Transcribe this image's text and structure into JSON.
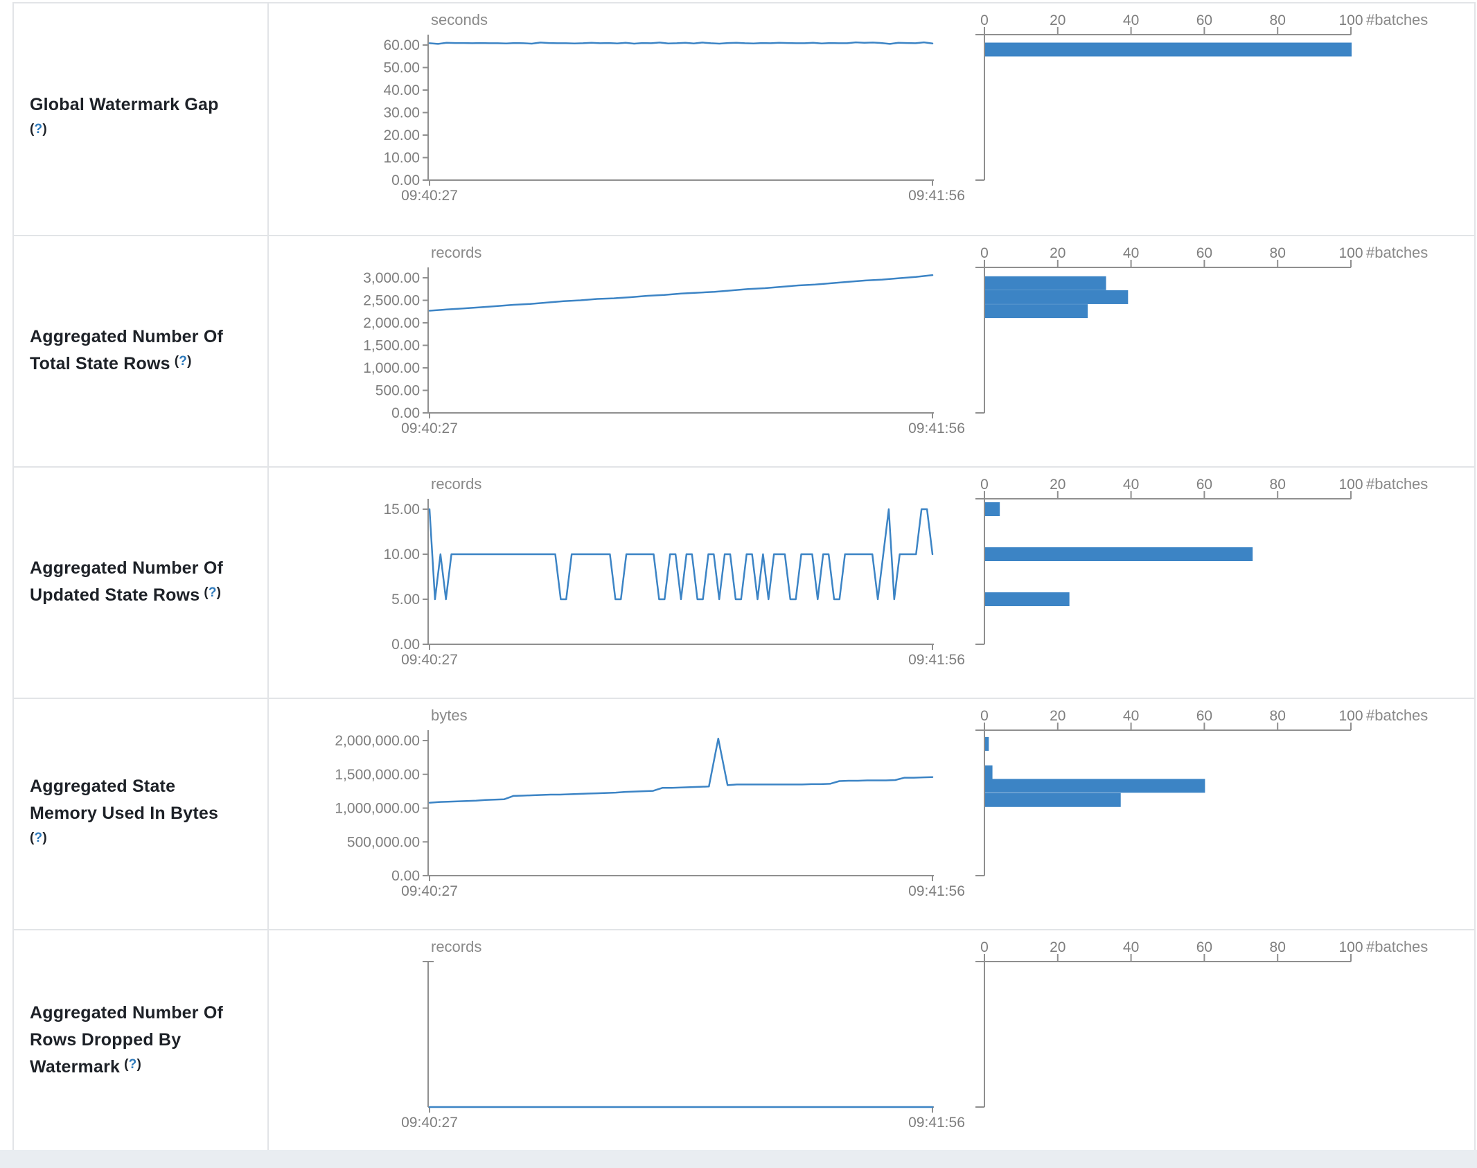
{
  "colors": {
    "accent": "#3c84c5",
    "axis_line": "#8f8f8f",
    "axis_text": "#7e7e7e",
    "help_blue": "#2d79bb",
    "label_text": "#1d2127",
    "border": "#e2e4e7",
    "footer_bg": "#e9edf1"
  },
  "time_axis": {
    "start": "09:40:27",
    "end": "09:41:56"
  },
  "histogram_header": {
    "ticks": [
      "0",
      "20",
      "40",
      "60",
      "80",
      "100"
    ],
    "unit_label": "#batches",
    "max": 100
  },
  "chart_data": {
    "note": "see rows[] - each row holds one timeline line chart and one horizontal histogram of #batches"
  },
  "rows": [
    {
      "id": "global-watermark-gap",
      "label_lines": [
        "Global Watermark Gap",
        "(?)"
      ],
      "help_label": "(?)",
      "timeline": {
        "type": "line",
        "unit": "seconds",
        "ymax": 60,
        "yticks": [
          "60.00",
          "50.00",
          "40.00",
          "30.00",
          "20.00",
          "10.00",
          "0.00"
        ],
        "values": [
          60.8,
          60.5,
          61.0,
          60.9,
          60.9,
          60.8,
          60.9,
          60.8,
          60.8,
          60.7,
          60.9,
          60.8,
          60.6,
          61.1,
          60.9,
          60.8,
          60.8,
          60.7,
          60.8,
          61.0,
          60.8,
          60.9,
          60.7,
          61.0,
          60.6,
          60.9,
          60.8,
          61.1,
          60.7,
          60.8,
          61.0,
          60.7,
          61.1,
          60.8,
          60.6,
          60.9,
          61.0,
          60.8,
          60.7,
          60.9,
          60.8,
          61.0,
          60.9,
          60.8,
          60.8,
          61.0,
          60.7,
          60.9,
          60.8,
          60.8,
          61.2,
          61.0,
          61.1,
          60.9,
          60.5,
          61.0,
          60.9,
          60.8,
          61.2,
          60.7
        ]
      },
      "histogram": {
        "type": "bar",
        "bars": [
          {
            "value": 58,
            "count": 100
          }
        ]
      }
    },
    {
      "id": "aggregated-total-state-rows",
      "label_lines": [
        "Aggregated Number Of",
        "Total State Rows (?)"
      ],
      "help_label": "(?)",
      "timeline": {
        "type": "line",
        "unit": "records",
        "ymax": 3000,
        "yticks": [
          "3,000.00",
          "2,500.00",
          "2,000.00",
          "1,500.00",
          "1,000.00",
          "500.00",
          "0.00"
        ],
        "values": [
          2270,
          2295,
          2320,
          2345,
          2370,
          2400,
          2420,
          2450,
          2480,
          2500,
          2530,
          2545,
          2570,
          2600,
          2620,
          2650,
          2670,
          2690,
          2720,
          2750,
          2770,
          2800,
          2830,
          2850,
          2880,
          2910,
          2940,
          2960,
          2990,
          3020,
          3060
        ]
      },
      "histogram": {
        "type": "bar",
        "bars": [
          {
            "value": 2880,
            "count": 33
          },
          {
            "value": 2570,
            "count": 39
          },
          {
            "value": 2260,
            "count": 28
          }
        ]
      }
    },
    {
      "id": "aggregated-updated-state-rows",
      "label_lines": [
        "Aggregated Number Of",
        "Updated State Rows (?)"
      ],
      "help_label": "(?)",
      "timeline": {
        "type": "line",
        "unit": "records",
        "ymax": 15,
        "yticks": [
          "15.00",
          "10.00",
          "5.00",
          "0.00"
        ],
        "values": [
          15,
          5,
          10,
          5,
          10,
          10,
          10,
          10,
          10,
          10,
          10,
          10,
          10,
          10,
          10,
          10,
          10,
          10,
          10,
          10,
          10,
          10,
          10,
          10,
          5,
          5,
          10,
          10,
          10,
          10,
          10,
          10,
          10,
          10,
          5,
          5,
          10,
          10,
          10,
          10,
          10,
          10,
          5,
          5,
          10,
          10,
          5,
          10,
          10,
          5,
          5,
          10,
          10,
          5,
          10,
          10,
          5,
          5,
          10,
          10,
          5,
          10,
          5,
          10,
          10,
          10,
          5,
          5,
          10,
          10,
          10,
          5,
          10,
          10,
          5,
          5,
          10,
          10,
          10,
          10,
          10,
          10,
          5,
          10,
          15,
          5,
          10,
          10,
          10,
          10,
          15,
          15,
          10
        ]
      },
      "histogram": {
        "type": "bar",
        "bars": [
          {
            "value": 15,
            "count": 4
          },
          {
            "value": 10,
            "count": 73
          },
          {
            "value": 5,
            "count": 23
          }
        ]
      }
    },
    {
      "id": "aggregated-state-memory-used",
      "label_lines": [
        "Aggregated State",
        "Memory Used In Bytes",
        "(?)"
      ],
      "help_label": "(?)",
      "timeline": {
        "type": "line",
        "unit": "bytes",
        "ymax": 2000000,
        "yticks": [
          "2,000,000.00",
          "1,500,000.00",
          "1,000,000.00",
          "500,000.00",
          "0.00"
        ],
        "values": [
          1080000,
          1090000,
          1095000,
          1100000,
          1105000,
          1110000,
          1120000,
          1125000,
          1130000,
          1180000,
          1185000,
          1190000,
          1195000,
          1200000,
          1200000,
          1205000,
          1210000,
          1215000,
          1220000,
          1225000,
          1230000,
          1240000,
          1245000,
          1250000,
          1255000,
          1300000,
          1300000,
          1305000,
          1310000,
          1315000,
          1320000,
          2030000,
          1340000,
          1350000,
          1350000,
          1350000,
          1350000,
          1350000,
          1350000,
          1350000,
          1350000,
          1355000,
          1355000,
          1360000,
          1400000,
          1405000,
          1405000,
          1410000,
          1410000,
          1410000,
          1415000,
          1450000,
          1450000,
          1455000,
          1460000
        ]
      },
      "histogram": {
        "type": "bar",
        "bars": [
          {
            "value": 1950000,
            "count": 1
          },
          {
            "value": 1530000,
            "count": 2
          },
          {
            "value": 1330000,
            "count": 60
          },
          {
            "value": 1120000,
            "count": 37
          }
        ]
      }
    },
    {
      "id": "aggregated-rows-dropped-by-watermark",
      "label_lines": [
        "Aggregated Number Of",
        "Rows Dropped By",
        "Watermark (?)"
      ],
      "help_label": "(?)",
      "timeline": {
        "type": "line",
        "unit": "records",
        "ymax": null,
        "yticks": [],
        "values": [
          0,
          0,
          0,
          0,
          0,
          0,
          0,
          0,
          0,
          0
        ]
      },
      "histogram": {
        "type": "bar",
        "bars": []
      }
    }
  ]
}
